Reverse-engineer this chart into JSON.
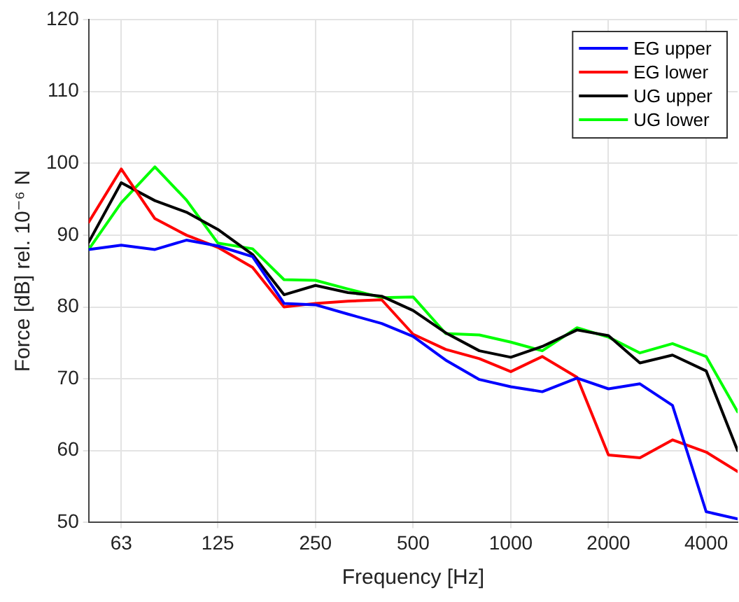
{
  "chart_data": {
    "type": "line",
    "xlabel": "Frequency [Hz]",
    "ylabel": "Force [dB] rel. 10⁻⁶ N",
    "x": [
      50,
      63,
      80,
      100,
      125,
      160,
      200,
      250,
      315,
      400,
      500,
      630,
      800,
      1000,
      1250,
      1600,
      2000,
      2500,
      3150,
      4000,
      5000
    ],
    "series": [
      {
        "name": "EG upper",
        "color": "#0000ff",
        "values": [
          88,
          88.6,
          88,
          89.3,
          88.5,
          87,
          80.5,
          80.3,
          79,
          77.7,
          75.9,
          72.6,
          69.9,
          68.9,
          68.2,
          70.1,
          68.6,
          69.3,
          66.3,
          51.5,
          50.5
        ]
      },
      {
        "name": "EG lower",
        "color": "#ff0000",
        "values": [
          91.8,
          99.2,
          92.3,
          90,
          88.3,
          85.5,
          80,
          80.5,
          80.8,
          81,
          76.2,
          74.1,
          72.8,
          71,
          73.1,
          70.2,
          59.4,
          59,
          61.5,
          59.8,
          57.1
        ]
      },
      {
        "name": "UG upper",
        "color": "#000000",
        "values": [
          89,
          97.3,
          94.8,
          93.2,
          90.8,
          87.3,
          81.7,
          83,
          82,
          81.5,
          79.5,
          76.4,
          73.9,
          73,
          74.5,
          76.8,
          76,
          72.2,
          73.3,
          71.1,
          60
        ]
      },
      {
        "name": "UG lower",
        "color": "#00ff00",
        "values": [
          88,
          94.5,
          99.5,
          94.9,
          88.9,
          88.1,
          83.8,
          83.7,
          82.5,
          81.3,
          81.4,
          76.3,
          76.1,
          75.1,
          73.9,
          77.1,
          75.8,
          73.6,
          74.9,
          73.1,
          65.4
        ]
      }
    ],
    "log": "x",
    "xlim": [
      50,
      5000
    ],
    "xticks": [
      63,
      125,
      250,
      500,
      1000,
      2000,
      4000
    ],
    "ylim": [
      50,
      120
    ],
    "yticks": [
      50,
      60,
      70,
      80,
      90,
      100,
      110,
      120
    ],
    "grid": true,
    "legend": "top right",
    "marker": "none",
    "line_style": "solid"
  }
}
